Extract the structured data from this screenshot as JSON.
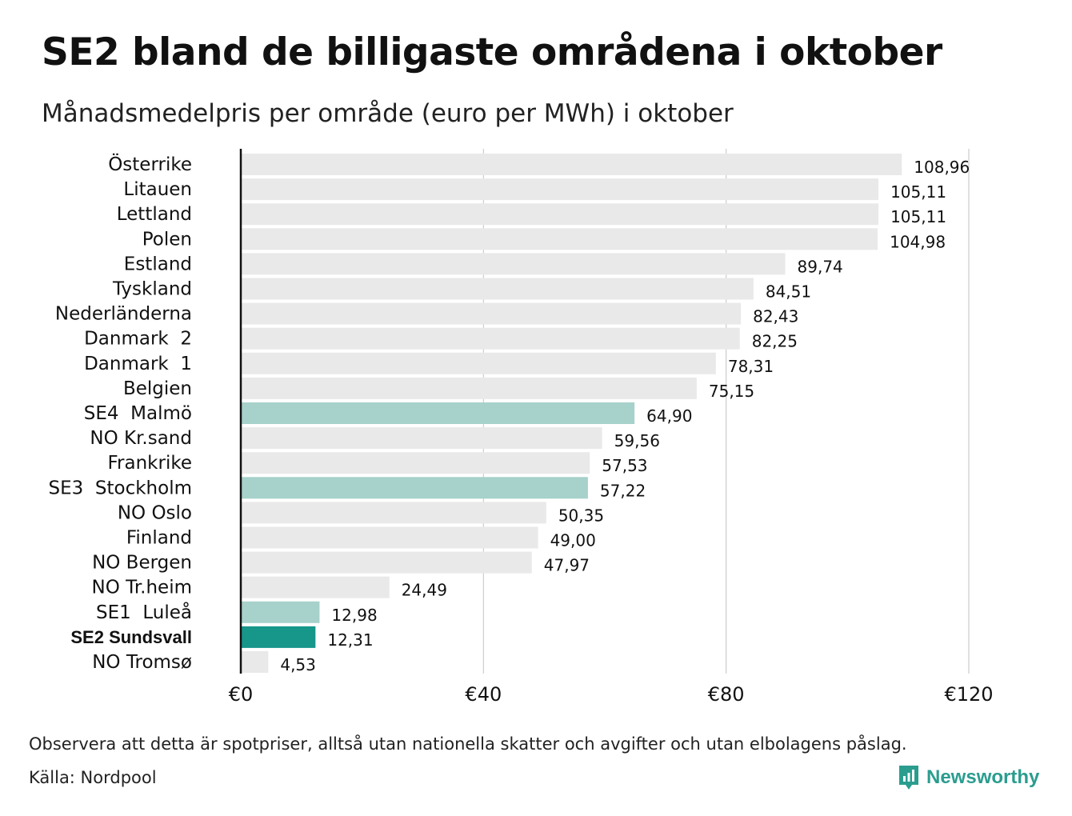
{
  "title": "SE2 bland de billigaste områdena i oktober",
  "subtitle": "Månadsmedelpris per område (euro per MWh) i oktober",
  "note": "Observera att detta är spotpriser, alltså utan nationella skatter och avgifter och utan elbolagens påslag.",
  "source": "Källa: Nordpool",
  "brand": {
    "name": "Newsworthy",
    "icon": "newsworthy-logo-icon"
  },
  "colors": {
    "bar_default": "#e9e9e9",
    "bar_se_light": "#a7d1cb",
    "bar_se2": "#17968a",
    "grid": "#cccccc",
    "axis": "#111111",
    "brand": "#2a9d8f"
  },
  "chart_data": {
    "type": "bar",
    "orientation": "horizontal",
    "title": "SE2 bland de billigaste områdena i oktober",
    "subtitle": "Månadsmedelpris per område (euro per MWh) i oktober",
    "xlabel": "",
    "ylabel": "",
    "xlim": [
      0,
      120
    ],
    "xticks": [
      0,
      40,
      80,
      120
    ],
    "xtick_labels": [
      "€0",
      "€40",
      "€80",
      "€120"
    ],
    "grid": true,
    "categories": [
      "Österrike",
      "Litauen",
      "Lettland",
      "Polen",
      "Estland",
      "Tyskland",
      "Nederländerna",
      "Danmark  2",
      "Danmark  1",
      "Belgien",
      "SE4  Malmö",
      "NO Kr.sand",
      "Frankrike",
      "SE3  Stockholm",
      "NO Oslo",
      "Finland",
      "NO Bergen",
      "NO Tr.heim",
      "SE1  Luleå",
      "SE2 Sundsvall",
      "NO Tromsø"
    ],
    "values": [
      108.96,
      105.11,
      105.11,
      104.98,
      89.74,
      84.51,
      82.43,
      82.25,
      78.31,
      75.15,
      64.9,
      59.56,
      57.53,
      57.22,
      50.35,
      49.0,
      47.97,
      24.49,
      12.98,
      12.31,
      4.53
    ],
    "value_labels": [
      "108,96",
      "105,11",
      "105,11",
      "104,98",
      "89,74",
      "84,51",
      "82,43",
      "82,25",
      "78,31",
      "75,15",
      "64,90",
      "59,56",
      "57,53",
      "57,22",
      "50,35",
      "49,00",
      "47,97",
      "24,49",
      "12,98",
      "12,31",
      "4,53"
    ],
    "highlight": [
      "default",
      "default",
      "default",
      "default",
      "default",
      "default",
      "default",
      "default",
      "default",
      "default",
      "se",
      "default",
      "default",
      "se",
      "default",
      "default",
      "default",
      "default",
      "se",
      "se2",
      "default"
    ]
  }
}
